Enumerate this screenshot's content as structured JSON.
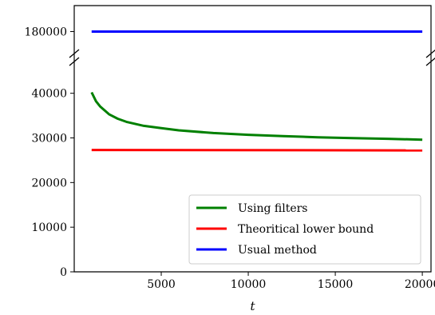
{
  "chart_data": {
    "type": "line",
    "title": "",
    "xlabel": "t",
    "ylabel": "",
    "broken_y_axis": true,
    "xlim": [
      0,
      20500
    ],
    "ylim_top_panel": [
      176000,
      184000
    ],
    "ylim_bottom_panel": [
      0,
      48000
    ],
    "x_ticks": [
      5000,
      10000,
      15000,
      20000
    ],
    "x_tick_labels": [
      "5000",
      "10000",
      "15000",
      "20000"
    ],
    "y_ticks_top_panel": [
      180000
    ],
    "y_tick_labels_top_panel": [
      "180000"
    ],
    "y_ticks_bottom_panel": [
      0,
      10000,
      20000,
      30000,
      40000
    ],
    "y_tick_labels_bottom_panel": [
      "0",
      "10000",
      "20000",
      "30000",
      "40000"
    ],
    "grid": false,
    "legend_position": "lower-right",
    "series": [
      {
        "name": "Using filters",
        "color": "#008000",
        "x": [
          1000,
          1250,
          1500,
          2000,
          2500,
          3000,
          4000,
          5000,
          6000,
          8000,
          10000,
          12000,
          14000,
          16000,
          18000,
          20000
        ],
        "y": [
          40200,
          38200,
          37000,
          35300,
          34300,
          33600,
          32700,
          32200,
          31700,
          31100,
          30700,
          30400,
          30150,
          29950,
          29800,
          29600
        ]
      },
      {
        "name": "Theoritical lower bound",
        "color": "#ff0000",
        "x": [
          1000,
          20000
        ],
        "y": [
          27300,
          27200
        ]
      },
      {
        "name": "Usual method",
        "color": "#0000ff",
        "x": [
          1000,
          20000
        ],
        "y": [
          180000,
          180000
        ]
      }
    ]
  }
}
